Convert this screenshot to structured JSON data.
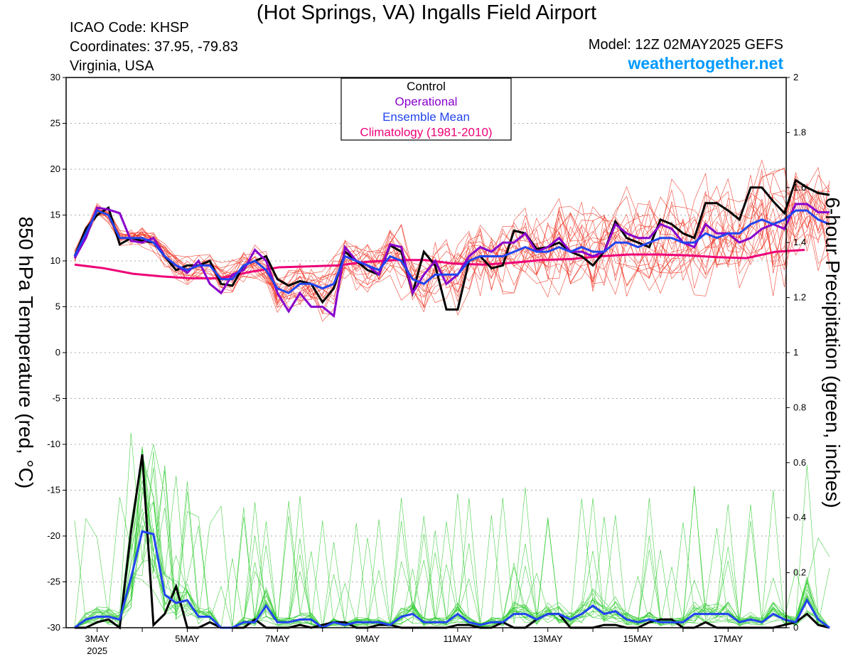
{
  "title": "(Hot Springs, VA) Ingalls Field Airport",
  "info": {
    "icao": "ICAO Code: KHSP",
    "coordinates": "Coordinates: 37.95, -79.83",
    "region": "Virginia, USA"
  },
  "model_run": "Model: 12Z 02MAY2025 GEFS",
  "site_brand": "weathertogether.net",
  "colors": {
    "control": "#000000",
    "operational": "#8800cc",
    "ensemble_mean": "#2244ee",
    "climatology": "#ee0077",
    "members_temp": "#ee3322",
    "members_precip": "#33cc33",
    "grid": "#aaaaaa",
    "brand": "#0099ff"
  },
  "chart_data": {
    "type": "line",
    "title": "(Hot Springs, VA) Ingalls Field Airport",
    "ylabel_left": "850 hPa Temperature (red, °C)",
    "ylabel_right": "6-hour Precipitation (green, inches)",
    "ylim_left": [
      -30,
      30
    ],
    "ylim_right": [
      0,
      2
    ],
    "yticks_left": [
      "30",
      "25",
      "20",
      "15",
      "10",
      "5",
      "0",
      "-5",
      "-10",
      "-15",
      "-20",
      "-25",
      "-30"
    ],
    "yticks_right": [
      "2",
      "1.8",
      "1.6",
      "1.4",
      "1.2",
      "1",
      "0.8",
      "0.6",
      "0.4",
      "0.2",
      "0"
    ],
    "x_ticks": [
      "3MAY",
      "5MAY",
      "7MAY",
      "9MAY",
      "11MAY",
      "13MAY",
      "15MAY",
      "17MAY"
    ],
    "x_year_label": "2025",
    "x_start": "2025-05-02T12Z",
    "x_step_hours": 6,
    "x_end_day": 16.2,
    "grid": true,
    "legend_position": "top-center",
    "legend": [
      "Control",
      "Operational",
      "Ensemble Mean",
      "Climatology (1981-2010)"
    ],
    "temperature": {
      "control": [
        10.5,
        13.5,
        15,
        15.8,
        11.8,
        12.5,
        12.2,
        12,
        10.5,
        9,
        9.5,
        9.5,
        10,
        7.5,
        7.3,
        9.5,
        10,
        10.5,
        8,
        7.3,
        7.8,
        7.5,
        5.5,
        7,
        11,
        10,
        9,
        8.5,
        11.7,
        11,
        6.5,
        11,
        9.5,
        4.7,
        4.7,
        10,
        10.5,
        9.2,
        9.5,
        13.3,
        13,
        11.3,
        11.5,
        12,
        11,
        10.5,
        9.5,
        11,
        14.3,
        12.5,
        12,
        11.5,
        14.5,
        14,
        13,
        12.5,
        16.3,
        16.3,
        15.5,
        14.5,
        18,
        18,
        16.5,
        15.2,
        18.8,
        18,
        17.4,
        17.2
      ],
      "operational": [
        10.3,
        12.5,
        15.8,
        15.6,
        15.2,
        12.2,
        12,
        12.5,
        10.5,
        9.5,
        8.7,
        10,
        7.5,
        6.5,
        8.5,
        9,
        11.2,
        10,
        6.5,
        4.5,
        6.5,
        5,
        5,
        4,
        11.5,
        10,
        9.5,
        8.5,
        11.8,
        11.5,
        6.5,
        8.5,
        10,
        7.5,
        8.5,
        10.5,
        11.5,
        11,
        12,
        12,
        13,
        11,
        11.5,
        12.5,
        11,
        11,
        10.5,
        11,
        14,
        13,
        12.5,
        12.5,
        14,
        13.5,
        12,
        11.5,
        14,
        13,
        13,
        12,
        12.5,
        13.5,
        14,
        13.5,
        16.2,
        16.2,
        15.3,
        15.3
      ],
      "ensemble_mean": [
        10.5,
        13,
        15.5,
        15,
        12.5,
        12.5,
        12.5,
        12,
        10.5,
        9.5,
        9,
        9.5,
        9.5,
        8,
        8,
        9.5,
        10,
        9,
        7,
        6.5,
        7.5,
        7.5,
        7,
        7.5,
        10.5,
        10,
        9.5,
        9,
        10.5,
        10,
        8,
        7.5,
        8.5,
        8.5,
        8.5,
        10,
        10.5,
        10.5,
        10.5,
        11,
        11.5,
        11,
        11,
        11.5,
        11,
        11.5,
        11,
        11,
        12,
        12,
        11.5,
        12,
        12.5,
        12.5,
        12,
        12,
        13,
        12.5,
        13,
        13,
        14,
        14.5,
        14,
        14.5,
        15.5,
        15.5,
        14.5,
        14
      ],
      "climatology": [
        9.6,
        9.2,
        8.6,
        8.3,
        8.1,
        8.1,
        8.8,
        9.3,
        9.4,
        9.5,
        9.9,
        10.1,
        10.1,
        9.7,
        9.6,
        9.8,
        10.1,
        10.2,
        10.5,
        10.7,
        10.7,
        10.6,
        10.4,
        10.3,
        11.0,
        11.2
      ]
    },
    "precipitation": {
      "control": [
        0,
        0,
        0.02,
        0.03,
        0,
        0.35,
        0.63,
        0.01,
        0.05,
        0.15,
        0,
        0,
        0.02,
        0,
        0,
        0,
        0.03,
        0,
        0,
        0,
        0.01,
        0,
        0.01,
        0.02,
        0.02,
        0,
        0,
        0.01,
        0.01,
        0,
        0,
        0,
        0,
        0,
        0.01,
        0.01,
        0,
        0,
        0.02,
        0,
        0,
        0.03,
        0.05,
        0.05,
        0,
        0,
        0,
        0.01,
        0.01,
        0,
        0,
        0.02,
        0.03,
        0.03,
        0,
        0,
        0.02,
        0,
        0,
        0,
        0,
        0,
        0,
        0.01,
        0.02,
        0.05,
        0.01,
        0
      ],
      "ensemble_mean": [
        0,
        0.03,
        0.04,
        0.04,
        0.03,
        0.18,
        0.35,
        0.34,
        0.12,
        0.09,
        0.1,
        0.04,
        0.04,
        0,
        0,
        0.02,
        0.02,
        0.08,
        0.02,
        0.02,
        0.03,
        0.03,
        0,
        0.02,
        0.01,
        0.02,
        0.02,
        0.02,
        0.01,
        0.04,
        0.05,
        0.02,
        0.02,
        0.02,
        0.05,
        0.02,
        0.01,
        0.02,
        0.02,
        0.05,
        0.05,
        0.03,
        0.05,
        0.05,
        0.03,
        0.05,
        0.08,
        0.05,
        0.06,
        0.03,
        0.02,
        0.03,
        0.02,
        0.02,
        0.02,
        0.05,
        0.05,
        0.05,
        0.05,
        0.02,
        0.03,
        0.02,
        0.05,
        0.03,
        0.02,
        0.1,
        0.03,
        0
      ]
    }
  }
}
